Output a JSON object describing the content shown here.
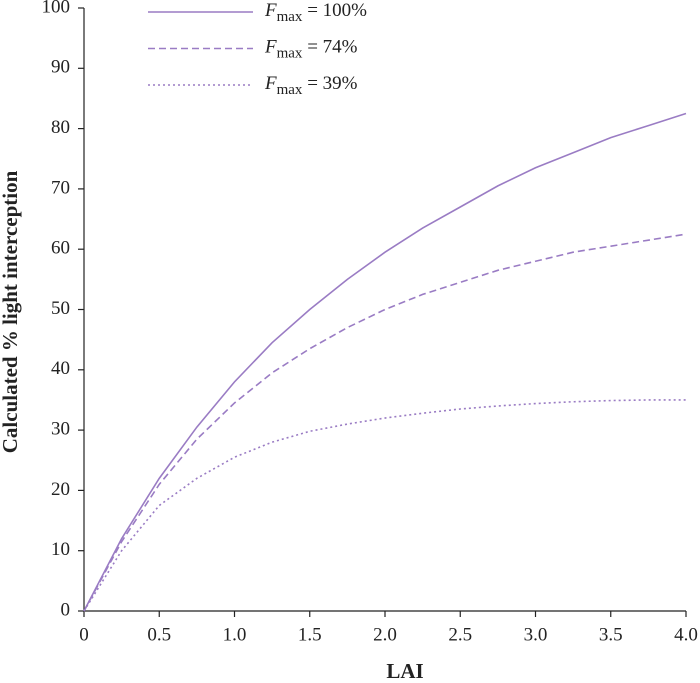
{
  "chart_data": {
    "type": "line",
    "x_label": "LAI",
    "y_label": "Calculated % light interception",
    "x": [
      0,
      0.25,
      0.5,
      0.75,
      1.0,
      1.25,
      1.5,
      1.75,
      2.0,
      2.25,
      2.5,
      2.75,
      3.0,
      3.25,
      3.5,
      3.75,
      4.0
    ],
    "series": [
      {
        "name": "Fmax = 100%",
        "color": "#9a7cc4",
        "linestyle": "solid",
        "values": [
          0,
          12,
          22,
          30.5,
          38,
          44.5,
          50,
          55,
          59.5,
          63.5,
          67,
          70.5,
          73.5,
          76,
          78.5,
          80.5,
          82.5
        ]
      },
      {
        "name": "Fmax = 74%",
        "color": "#9a7cc4",
        "linestyle": "dashed",
        "values": [
          0,
          11.5,
          21,
          28.5,
          34.5,
          39.5,
          43.5,
          47,
          50,
          52.5,
          54.5,
          56.5,
          58,
          59.5,
          60.5,
          61.5,
          62.5
        ]
      },
      {
        "name": "Fmax = 39%",
        "color": "#9a7cc4",
        "linestyle": "dotted",
        "values": [
          0,
          10,
          17.5,
          22,
          25.5,
          28,
          29.8,
          31,
          32,
          32.8,
          33.5,
          34,
          34.4,
          34.7,
          34.9,
          35,
          35
        ]
      }
    ],
    "xlim": [
      0,
      4
    ],
    "ylim": [
      0,
      100
    ],
    "xticks": [
      0,
      0.5,
      {
        "value": 1,
        "label": "1.0"
      },
      1.5,
      {
        "value": 2,
        "label": "2.0"
      },
      2.5,
      {
        "value": 3,
        "label": "3.0"
      },
      3.5,
      {
        "value": 4,
        "label": "4.0"
      }
    ],
    "yticks": [
      0,
      10,
      20,
      30,
      40,
      50,
      60,
      70,
      80,
      90,
      100
    ],
    "legend": "top-left"
  }
}
